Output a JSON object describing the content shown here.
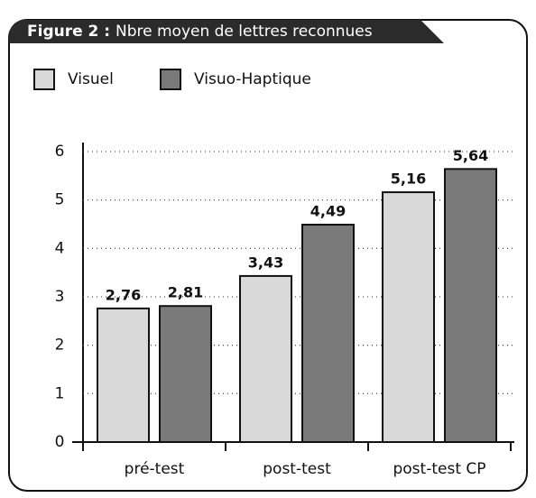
{
  "chart_data": {
    "type": "bar",
    "title_label": "Figure 2 :",
    "title": "Nbre moyen de lettres reconnues",
    "categories": [
      "pré-test",
      "post-test",
      "post-test CP"
    ],
    "series": [
      {
        "name": "Visuel",
        "color": "#d9d9d9",
        "values": [
          2.76,
          3.43,
          5.16
        ],
        "value_labels": [
          "2,76",
          "3,43",
          "5,16"
        ]
      },
      {
        "name": "Visuo-Haptique",
        "color": "#7a7a7a",
        "values": [
          2.81,
          4.49,
          5.64
        ],
        "value_labels": [
          "2,81",
          "4,49",
          "5,64"
        ]
      }
    ],
    "ylim": [
      0,
      6
    ],
    "yticks": [
      0,
      1,
      2,
      3,
      4,
      5,
      6
    ],
    "grid": true,
    "legend": "top-left"
  }
}
